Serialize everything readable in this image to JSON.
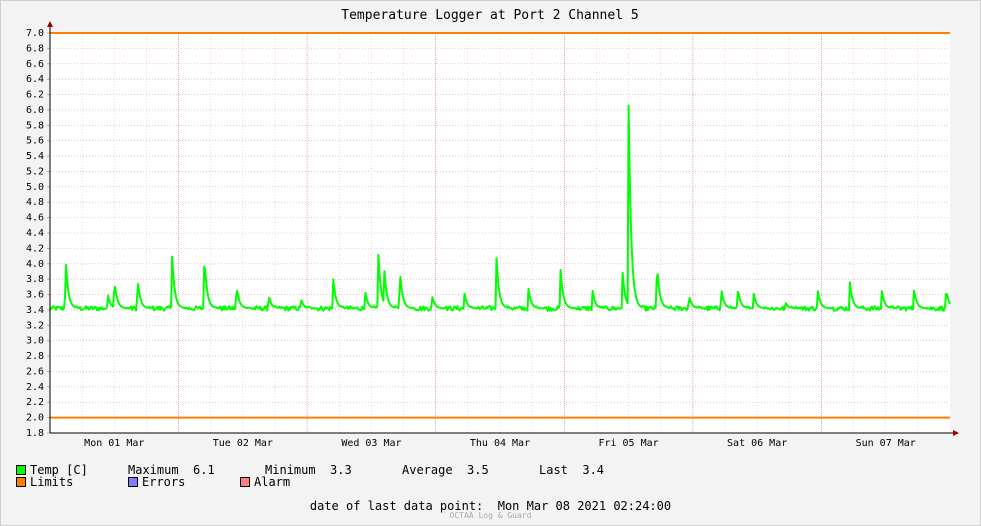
{
  "chart_data": {
    "type": "line",
    "title": "Temperature Logger at Port 2 Channel 5",
    "ylim": [
      1.8,
      7.0
    ],
    "y_ticks": [
      "1.8",
      "2.0",
      "2.2",
      "2.4",
      "2.6",
      "2.8",
      "3.0",
      "3.2",
      "3.4",
      "3.6",
      "3.8",
      "4.0",
      "4.2",
      "4.4",
      "4.6",
      "4.8",
      "5.0",
      "5.2",
      "5.4",
      "5.6",
      "5.8",
      "6.0",
      "6.2",
      "6.4",
      "6.6",
      "6.8",
      "7.0"
    ],
    "x_unit": "days",
    "xlim": [
      0,
      7
    ],
    "x_tick_labels": [
      "Mon 01 Mar",
      "Tue 02 Mar",
      "Wed 03 Mar",
      "Thu 04 Mar",
      "Fri 05 Mar",
      "Sat 06 Mar",
      "Sun 07 Mar"
    ],
    "grid": true,
    "limits": [
      2.0,
      7.0
    ],
    "baseline": 3.42,
    "spikes": [
      [
        0.12,
        4.13
      ],
      [
        0.45,
        3.6
      ],
      [
        0.5,
        3.8
      ],
      [
        0.68,
        3.83
      ],
      [
        0.95,
        4.1
      ],
      [
        1.2,
        4.12
      ],
      [
        1.45,
        3.73
      ],
      [
        1.7,
        3.6
      ],
      [
        1.95,
        3.55
      ],
      [
        2.2,
        3.87
      ],
      [
        2.45,
        3.65
      ],
      [
        2.55,
        4.27
      ],
      [
        2.6,
        3.92
      ],
      [
        2.72,
        3.95
      ],
      [
        2.97,
        3.6
      ],
      [
        3.22,
        3.65
      ],
      [
        3.47,
        4.17
      ],
      [
        3.72,
        3.7
      ],
      [
        3.97,
        3.95
      ],
      [
        4.22,
        3.65
      ],
      [
        4.45,
        3.98
      ],
      [
        4.5,
        6.13
      ],
      [
        4.72,
        4.03
      ],
      [
        4.97,
        3.6
      ],
      [
        5.22,
        3.7
      ],
      [
        5.35,
        3.68
      ],
      [
        5.47,
        3.65
      ],
      [
        5.72,
        3.5
      ],
      [
        5.97,
        3.67
      ],
      [
        6.22,
        3.78
      ],
      [
        6.47,
        3.65
      ],
      [
        6.72,
        3.67
      ],
      [
        6.97,
        3.68
      ]
    ],
    "series": [
      {
        "name": "Temp [C]",
        "color": "#00ff00",
        "maximum": "6.1",
        "minimum": "3.3",
        "average": "3.5",
        "last": "3.4"
      },
      {
        "name": "Limits",
        "color": "#ff7f00"
      },
      {
        "name": "Errors",
        "color": "#7f7fff"
      },
      {
        "name": "Alarm",
        "color": "#ff7f7f"
      }
    ]
  },
  "legend": {
    "maximum_label": "Maximum",
    "minimum_label": "Minimum",
    "average_label": "Average",
    "last_label": "Last"
  },
  "footer": {
    "last_point_label": "date of last data point:",
    "last_point_value": "Mon Mar 08 2021 02:24:00",
    "watermark": "OCTAA Log & Guard"
  }
}
